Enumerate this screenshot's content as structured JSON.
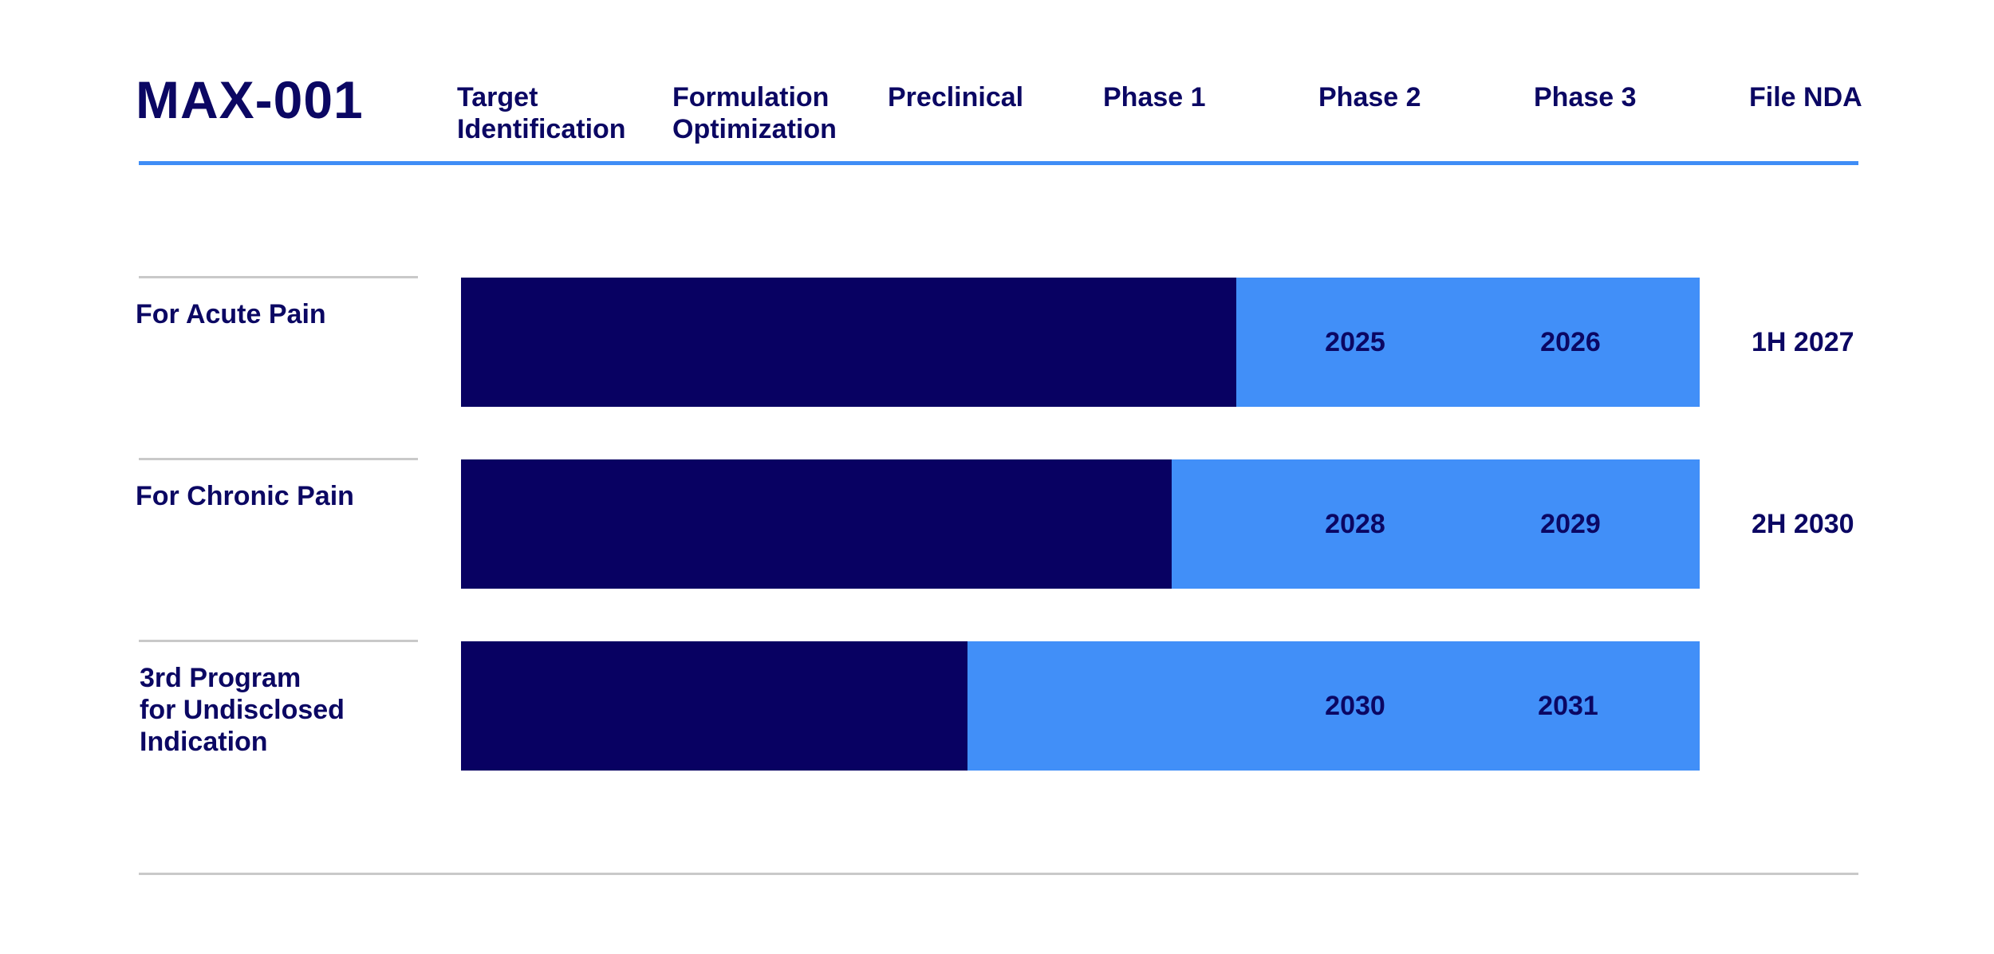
{
  "title": "MAX-001",
  "colors": {
    "completed": "#080162",
    "planned": "#418ff8",
    "header_rule": "#3f8df6",
    "text": "#0b0763",
    "divider": "#c9c9c9"
  },
  "chart_data": {
    "type": "bar",
    "orientation": "horizontal-stacked",
    "title": "MAX-001",
    "stages": [
      "Target\nIdentification",
      "Formulation\nOptimization",
      "Preclinical",
      "Phase 1",
      "Phase 2",
      "Phase 3",
      "File NDA"
    ],
    "xlim_stages": [
      0,
      6
    ],
    "categories": [
      "For Acute Pain",
      "For Chronic Pain",
      "3rd Program\nfor Undisclosed\nIndication"
    ],
    "series": [
      {
        "name": "",
        "color": "#080162",
        "values": [
          3.6,
          3.3,
          2.35
        ]
      },
      {
        "name": "",
        "color": "#418ff8",
        "values": [
          2.15,
          2.45,
          3.4
        ]
      }
    ],
    "annotations": [
      {
        "row": 0,
        "phase2": "2025",
        "phase3": "2026",
        "nda": "1H 2027"
      },
      {
        "row": 1,
        "phase2": "2028",
        "phase3": "2029",
        "nda": "2H 2030"
      },
      {
        "row": 2,
        "phase2": "2030",
        "phase3": "2031",
        "nda": ""
      }
    ]
  }
}
